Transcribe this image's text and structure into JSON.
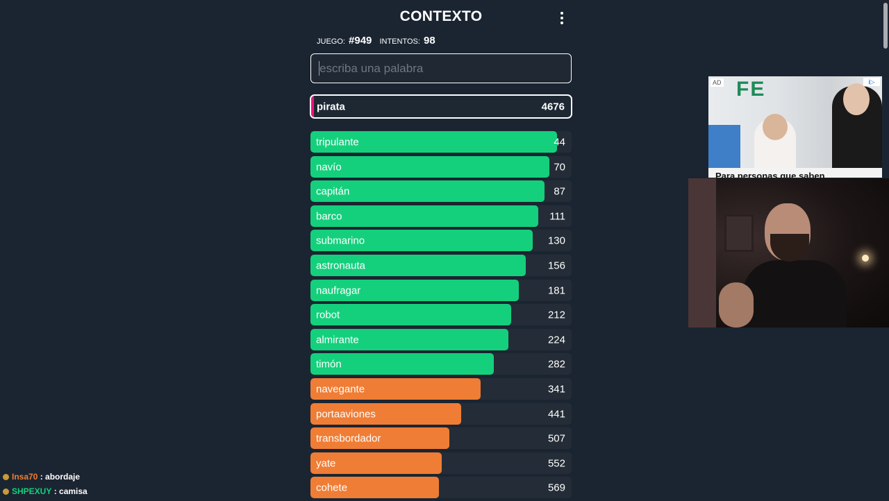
{
  "header": {
    "title": "CONTEXTO",
    "menu_icon": "vertical-dots-icon"
  },
  "stats": {
    "game_label": "juego:",
    "game_value": "#949",
    "attempts_label": "intentos:",
    "attempts_value": "98"
  },
  "search": {
    "value": "",
    "placeholder": "escriba una palabra"
  },
  "current_guess": {
    "word": "pirata",
    "rank": "4676",
    "accent_color": "#f0127a"
  },
  "colors": {
    "close": "#14d07d",
    "medium": "#ef7d35",
    "row_background": "#242d37",
    "page_background": "#1b2531"
  },
  "guesses": [
    {
      "word": "tripulante",
      "rank": "44",
      "fill": 0.945,
      "color": "close"
    },
    {
      "word": "navío",
      "rank": "70",
      "fill": 0.915,
      "color": "close"
    },
    {
      "word": "capitán",
      "rank": "87",
      "fill": 0.897,
      "color": "close"
    },
    {
      "word": "barco",
      "rank": "111",
      "fill": 0.872,
      "color": "close"
    },
    {
      "word": "submarino",
      "rank": "130",
      "fill": 0.852,
      "color": "close"
    },
    {
      "word": "astronauta",
      "rank": "156",
      "fill": 0.825,
      "color": "close"
    },
    {
      "word": "naufragar",
      "rank": "181",
      "fill": 0.798,
      "color": "close"
    },
    {
      "word": "robot",
      "rank": "212",
      "fill": 0.769,
      "color": "close"
    },
    {
      "word": "almirante",
      "rank": "224",
      "fill": 0.757,
      "color": "close"
    },
    {
      "word": "timón",
      "rank": "282",
      "fill": 0.702,
      "color": "close"
    },
    {
      "word": "navegante",
      "rank": "341",
      "fill": 0.652,
      "color": "medium"
    },
    {
      "word": "portaaviones",
      "rank": "441",
      "fill": 0.577,
      "color": "medium"
    },
    {
      "word": "transbordador",
      "rank": "507",
      "fill": 0.532,
      "color": "medium"
    },
    {
      "word": "yate",
      "rank": "552",
      "fill": 0.503,
      "color": "medium"
    },
    {
      "word": "cohete",
      "rank": "569",
      "fill": 0.492,
      "color": "medium"
    }
  ],
  "ad": {
    "label": "AD",
    "choices": "i▷",
    "headline": "Para personas que saben"
  },
  "chat": [
    {
      "user": "Insa70",
      "message": ": abordaje",
      "user_color": "#ef7d35"
    },
    {
      "user": "SHPEXUY",
      "message": ": camisa",
      "user_color": "#14d07d"
    }
  ]
}
